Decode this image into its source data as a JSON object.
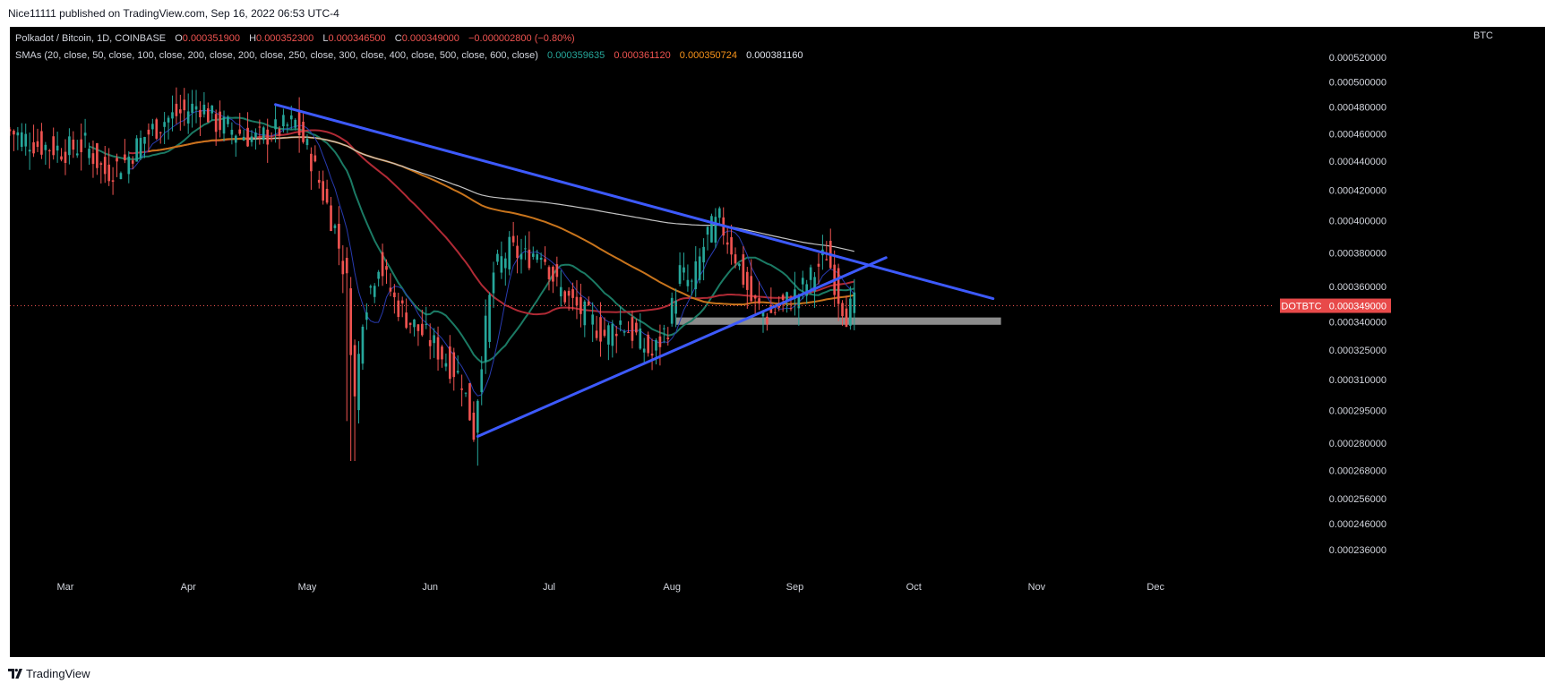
{
  "header": {
    "published_by": "Nice11111 published on TradingView.com, Sep 16, 2022 06:53 UTC-4"
  },
  "legend": {
    "symbol": "Polkadot / Bitcoin, 1D, COINBASE",
    "open_label": "O",
    "open": "0.000351900",
    "high_label": "H",
    "high": "0.000352300",
    "low_label": "L",
    "low": "0.000346500",
    "close_label": "C",
    "close": "0.000349000",
    "change": "−0.000002800 (−0.80%)",
    "sma_title": "SMAs (20, close, 50, close, 100, close, 200, close, 200, close, 250, close, 300, close, 400, close, 500, close, 600, close)",
    "sma_values": [
      "0.000359635",
      "0.000361120",
      "0.000350724",
      "0.000381160"
    ]
  },
  "currency": "BTC",
  "price_tag": {
    "symbol": "DOTBTC",
    "value": "0.000349000"
  },
  "footer": {
    "brand": "TradingView"
  },
  "colors": {
    "background": "#000000",
    "up": "#26a69a",
    "down": "#ef5350",
    "sma20": "#1b7a64",
    "sma50": "#b02a35",
    "sma100": "#c8741c",
    "sma200": "#c4c4c4",
    "sma_fast": "#283bb0",
    "trendline": "#3d5afe",
    "zone": "#8c8c8c",
    "price_line": "#ef5350"
  },
  "chart_data": {
    "type": "candlestick",
    "title": "Polkadot / Bitcoin, 1D, COINBASE",
    "y_scale": "log",
    "ylim": [
      0.000226,
      0.000546
    ],
    "x_start": "2022-02-15",
    "x_end": "2022-12-31",
    "y_ticks": [
      "0.000236000",
      "0.000246000",
      "0.000256000",
      "0.000268000",
      "0.000280000",
      "0.000295000",
      "0.000310000",
      "0.000325000",
      "0.000340000",
      "0.000360000",
      "0.000380000",
      "0.000400000",
      "0.000420000",
      "0.000440000",
      "0.000460000",
      "0.000480000",
      "0.000500000",
      "0.000520000"
    ],
    "x_ticks": [
      {
        "label": "Mar",
        "date": "2022-03-01"
      },
      {
        "label": "Apr",
        "date": "2022-04-01"
      },
      {
        "label": "May",
        "date": "2022-05-01"
      },
      {
        "label": "Jun",
        "date": "2022-06-01"
      },
      {
        "label": "Jul",
        "date": "2022-07-01"
      },
      {
        "label": "Aug",
        "date": "2022-08-01"
      },
      {
        "label": "Sep",
        "date": "2022-09-01"
      },
      {
        "label": "Oct",
        "date": "2022-10-01"
      },
      {
        "label": "Nov",
        "date": "2022-11-01"
      },
      {
        "label": "Dec",
        "date": "2022-12-01"
      }
    ],
    "close_anchors": [
      [
        "2022-02-15",
        0.000462
      ],
      [
        "2022-02-22",
        0.000452
      ],
      [
        "2022-03-01",
        0.000448
      ],
      [
        "2022-03-06",
        0.000452
      ],
      [
        "2022-03-11",
        0.000432
      ],
      [
        "2022-03-16",
        0.00044
      ],
      [
        "2022-03-21",
        0.000458
      ],
      [
        "2022-03-26",
        0.00047
      ],
      [
        "2022-04-01",
        0.000478
      ],
      [
        "2022-04-04",
        0.000482
      ],
      [
        "2022-04-08",
        0.000468
      ],
      [
        "2022-04-13",
        0.000462
      ],
      [
        "2022-04-18",
        0.000456
      ],
      [
        "2022-04-23",
        0.000462
      ],
      [
        "2022-04-28",
        0.000468
      ],
      [
        "2022-05-02",
        0.000442
      ],
      [
        "2022-05-05",
        0.000418
      ],
      [
        "2022-05-08",
        0.000395
      ],
      [
        "2022-05-11",
        0.000362
      ],
      [
        "2022-05-13",
        0.0003
      ],
      [
        "2022-05-15",
        0.000345
      ],
      [
        "2022-05-19",
        0.000375
      ],
      [
        "2022-05-23",
        0.000352
      ],
      [
        "2022-05-27",
        0.00034
      ],
      [
        "2022-06-01",
        0.00033
      ],
      [
        "2022-06-05",
        0.00032
      ],
      [
        "2022-06-09",
        0.00031
      ],
      [
        "2022-06-12",
        0.000285
      ],
      [
        "2022-06-14",
        0.000322
      ],
      [
        "2022-06-17",
        0.000368
      ],
      [
        "2022-06-21",
        0.000382
      ],
      [
        "2022-06-25",
        0.000377
      ],
      [
        "2022-06-29",
        0.000383
      ],
      [
        "2022-07-03",
        0.00036
      ],
      [
        "2022-07-07",
        0.00035
      ],
      [
        "2022-07-11",
        0.000342
      ],
      [
        "2022-07-15",
        0.000333
      ],
      [
        "2022-07-19",
        0.00034
      ],
      [
        "2022-07-23",
        0.000332
      ],
      [
        "2022-07-27",
        0.000322
      ],
      [
        "2022-07-31",
        0.000338
      ],
      [
        "2022-08-03",
        0.000368
      ],
      [
        "2022-08-06",
        0.00036
      ],
      [
        "2022-08-10",
        0.000392
      ],
      [
        "2022-08-13",
        0.0004
      ],
      [
        "2022-08-17",
        0.000378
      ],
      [
        "2022-08-21",
        0.000352
      ],
      [
        "2022-08-25",
        0.000343
      ],
      [
        "2022-08-29",
        0.00035
      ],
      [
        "2022-09-02",
        0.000356
      ],
      [
        "2022-09-06",
        0.000368
      ],
      [
        "2022-09-09",
        0.00038
      ],
      [
        "2022-09-12",
        0.000355
      ],
      [
        "2022-09-14",
        0.000345
      ],
      [
        "2022-09-16",
        0.000349
      ]
    ],
    "drawings": {
      "upper_trendline": [
        [
          "2022-04-23",
          0.000482
        ],
        [
          "2022-10-21",
          0.000353
        ]
      ],
      "lower_trendline": [
        [
          "2022-06-13",
          0.000283
        ],
        [
          "2022-09-24",
          0.000377
        ]
      ],
      "support_zone": {
        "from": "2022-08-02",
        "to": "2022-10-23",
        "low": 0.0003385,
        "high": 0.0003425
      },
      "last_price": 0.000349
    }
  }
}
